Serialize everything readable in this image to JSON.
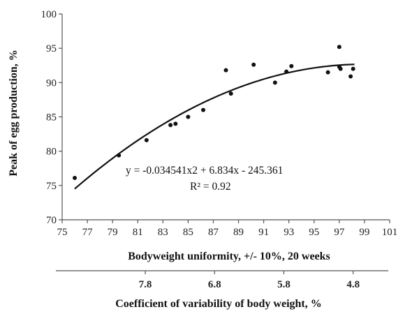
{
  "chart_data": {
    "type": "scatter",
    "title": "",
    "ylabel": "Peak of egg production, %",
    "xlabel": "Bodyweight uniformity, +/- 10%, 20 weeks",
    "xlim": [
      75,
      101
    ],
    "ylim": [
      70,
      100
    ],
    "xticks": [
      75,
      77,
      79,
      81,
      83,
      85,
      87,
      89,
      91,
      93,
      95,
      97,
      99,
      101
    ],
    "yticks": [
      70,
      75,
      80,
      85,
      90,
      95,
      100
    ],
    "grid": false,
    "points": [
      {
        "x": 76.0,
        "y": 76.1
      },
      {
        "x": 79.5,
        "y": 79.4
      },
      {
        "x": 81.7,
        "y": 81.6
      },
      {
        "x": 83.6,
        "y": 83.8
      },
      {
        "x": 84.0,
        "y": 84.0
      },
      {
        "x": 85.0,
        "y": 85.0
      },
      {
        "x": 86.2,
        "y": 86.0
      },
      {
        "x": 88.0,
        "y": 91.8
      },
      {
        "x": 88.4,
        "y": 88.4
      },
      {
        "x": 90.2,
        "y": 92.6
      },
      {
        "x": 91.9,
        "y": 90.0
      },
      {
        "x": 92.8,
        "y": 91.6
      },
      {
        "x": 93.2,
        "y": 92.4
      },
      {
        "x": 96.1,
        "y": 91.5
      },
      {
        "x": 97.0,
        "y": 95.2
      },
      {
        "x": 97.0,
        "y": 92.3
      },
      {
        "x": 97.1,
        "y": 92.0
      },
      {
        "x": 97.9,
        "y": 90.9
      },
      {
        "x": 98.1,
        "y": 92.0
      }
    ],
    "trendline": {
      "type": "polynomial",
      "coefficients": {
        "a": -0.034541,
        "b": 6.834,
        "c": -245.361
      },
      "x_range": [
        76,
        98.2
      ]
    },
    "equation_label": "y = -0.034541x2 + 6.834x - 245.361",
    "r2_label": "R² = 0.92",
    "secondary_axis": {
      "label": "Coefficient of variability of body weight, %",
      "ticks": [
        {
          "label": "7.8",
          "at_x": 81.6
        },
        {
          "label": "6.8",
          "at_x": 87.1
        },
        {
          "label": "5.8",
          "at_x": 92.6
        },
        {
          "label": "4.8",
          "at_x": 98.1
        }
      ]
    },
    "colors": {
      "points": "#111111",
      "line": "#111111",
      "axis": "#555555"
    }
  }
}
